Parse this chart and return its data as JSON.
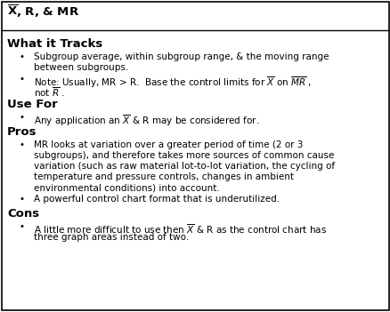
{
  "title": "$\\mathdefault{\\overline{X}}$, R, & MR",
  "bg_color": "#ffffff",
  "text_color": "#000000",
  "sections": [
    {
      "heading": "What it Tracks",
      "items": [
        [
          "Subgroup average, within subgroup range, & the moving range",
          "between subgroups."
        ],
        [
          "Note: Usually, MR > R.  Base the control limits for $\\overline{X}$ on $\\overline{MR}$ ,",
          "not $\\overline{R}$ ."
        ]
      ]
    },
    {
      "heading": "Use For",
      "items": [
        [
          "Any application an $\\overline{X}$ & R may be considered for."
        ]
      ]
    },
    {
      "heading": "Pros",
      "items": [
        [
          "MR looks at variation over a greater period of time (2 or 3",
          "subgroups), and therefore takes more sources of common cause",
          "variation (such as raw material lot-to-lot variation, the cycling of",
          "temperature and pressure controls, changes in ambient",
          "environmental conditions) into account."
        ],
        [
          "A powerful control chart format that is underutilized."
        ]
      ]
    },
    {
      "heading": "Cons",
      "items": [
        [
          "A little more difficult to use then $\\overline{X}$ & R as the control chart has",
          "three graph areas instead of two."
        ]
      ]
    }
  ],
  "title_fontsize": 9.5,
  "heading_fontsize": 9.5,
  "body_fontsize": 7.5,
  "bullet": "•"
}
